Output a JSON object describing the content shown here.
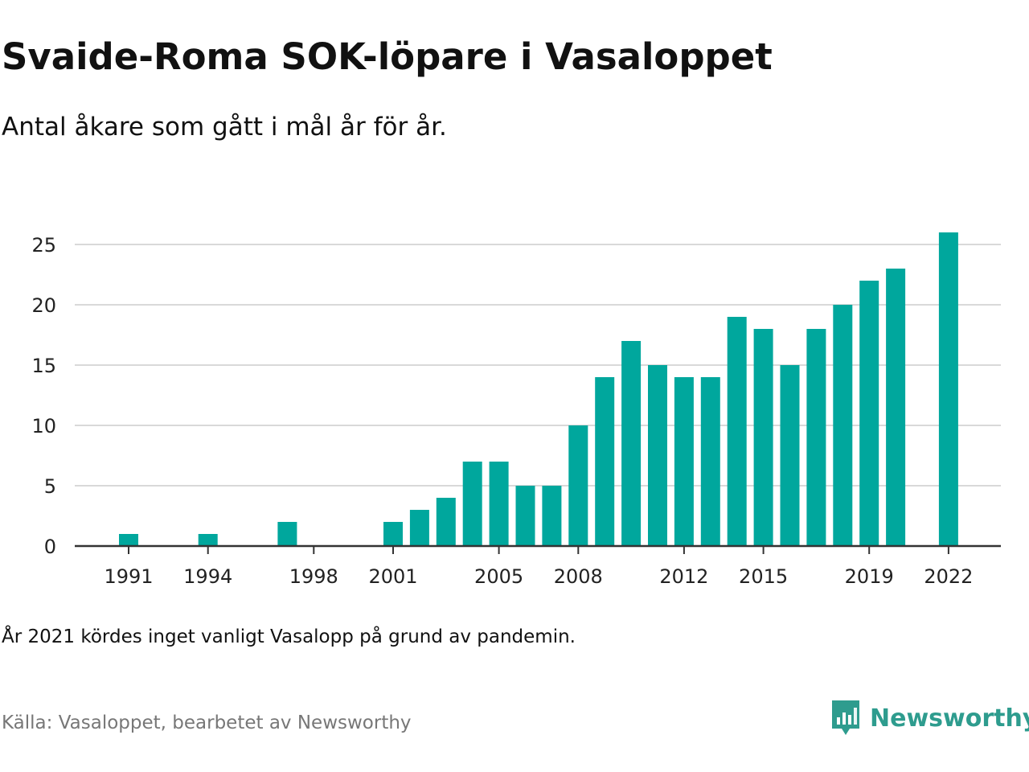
{
  "title": "Svaide-Roma SOK-löpare i Vasaloppet",
  "subtitle": "Antal åkare som gått i mål år för år.",
  "note": "År 2021 kördes inget vanligt Vasalopp på grund av pandemin.",
  "source": "Källa: Vasaloppet, bearbetet av Newsworthy",
  "brand": {
    "name": "Newsworthy",
    "icon": "newsworthy-logo-icon",
    "color": "#2e9c8e"
  },
  "colors": {
    "bar": "#00a79d",
    "grid": "#d9d9d9",
    "axis": "#333333"
  },
  "chart_data": {
    "type": "bar",
    "title": "Svaide-Roma SOK-löpare i Vasaloppet",
    "xlabel": "",
    "ylabel": "",
    "ylim": [
      0,
      25
    ],
    "yticks": [
      0,
      5,
      10,
      15,
      20,
      25
    ],
    "xticks": [
      1991,
      1994,
      1998,
      2001,
      2005,
      2008,
      2012,
      2015,
      2019,
      2022
    ],
    "grid": true,
    "categories": [
      1991,
      1994,
      1997,
      2001,
      2002,
      2003,
      2004,
      2005,
      2006,
      2007,
      2008,
      2009,
      2010,
      2011,
      2012,
      2013,
      2014,
      2015,
      2016,
      2017,
      2018,
      2019,
      2020,
      2022
    ],
    "values": [
      1,
      1,
      2,
      2,
      3,
      4,
      7,
      7,
      5,
      5,
      10,
      14,
      17,
      15,
      14,
      14,
      19,
      18,
      15,
      18,
      20,
      22,
      23,
      26
    ]
  }
}
